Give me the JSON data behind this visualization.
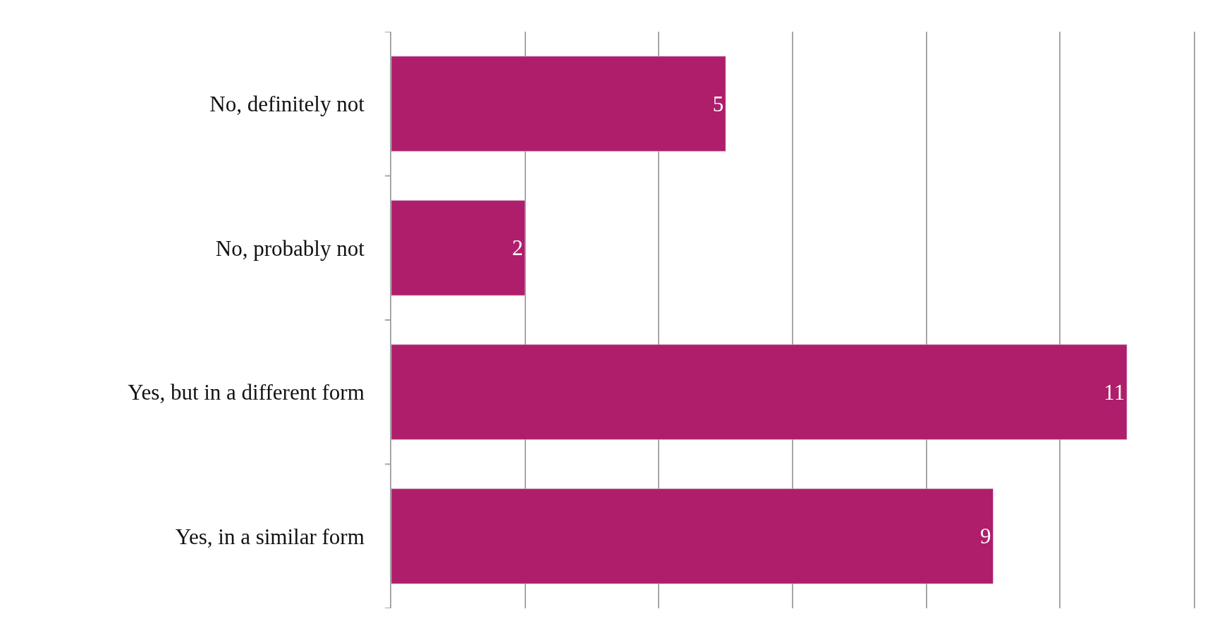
{
  "chart_data": {
    "type": "bar",
    "orientation": "horizontal",
    "categories": [
      "No, definitely not",
      "No, probably not",
      "Yes, but in a different form",
      "Yes, in a similar form"
    ],
    "values": [
      5,
      2,
      11,
      9
    ],
    "color": "#ae1e6b",
    "data_labels": true,
    "xlim": [
      0,
      12
    ],
    "xticks": [
      {
        "value": 0,
        "label": null
      },
      {
        "value": 2,
        "label": null
      },
      {
        "value": 4,
        "label": null
      },
      {
        "value": 6,
        "label": null
      },
      {
        "value": 8,
        "label": null
      },
      {
        "value": 10,
        "label": null
      },
      {
        "value": 12,
        "label": null
      }
    ],
    "grid": "x",
    "tick_labels": "y"
  }
}
